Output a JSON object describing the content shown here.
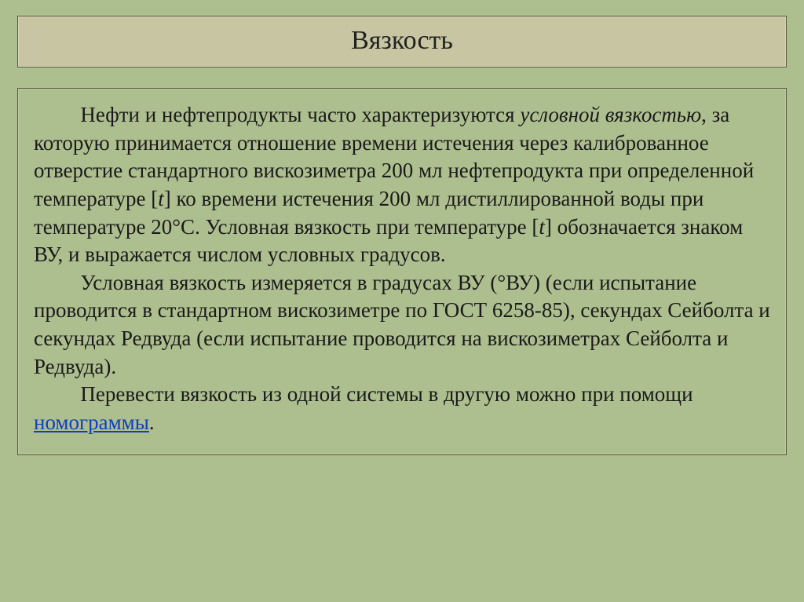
{
  "slide": {
    "title": "Вязкость",
    "body": {
      "p1_a": "Нефти и нефтепродукты часто характеризуются ",
      "p1_italic": "условной вязкостью",
      "p1_b": ", за которую принимается отношение времени истечения через калиброванное отверстие стандартного вискозиметра 200 мл нефтепродукта при определенной температуре [",
      "p1_t1": "t",
      "p1_c": "] ко времени истечения 200 мл дистиллированной воды при температуре 20°С. Условная вязкость при температуре [",
      "p1_t2": "t",
      "p1_d": "] обозначается знаком ВУ, и выражается числом условных градусов.",
      "p2": "Условная вязкость измеряется в градусах ВУ (°ВУ) (если испытание проводится в стандартном вискозиметре по ГОСТ 6258-85), секундах Сейболта и секундах Редвуда (если испытание проводится на вискозиметрах Сейболта и Редвуда).",
      "p3_a": "Перевести вязкость из одной системы в другую можно при помощи ",
      "p3_link": "номограммы",
      "p3_b": "."
    }
  },
  "colors": {
    "slide_bg": "#aebf8f",
    "title_bg": "#c8c5a2",
    "border": "#5a5a3a",
    "text": "#1a1a1a",
    "link": "#0b3fc4"
  },
  "typography": {
    "title_fontsize": 34,
    "body_fontsize": 27,
    "font_family": "Times New Roman"
  }
}
